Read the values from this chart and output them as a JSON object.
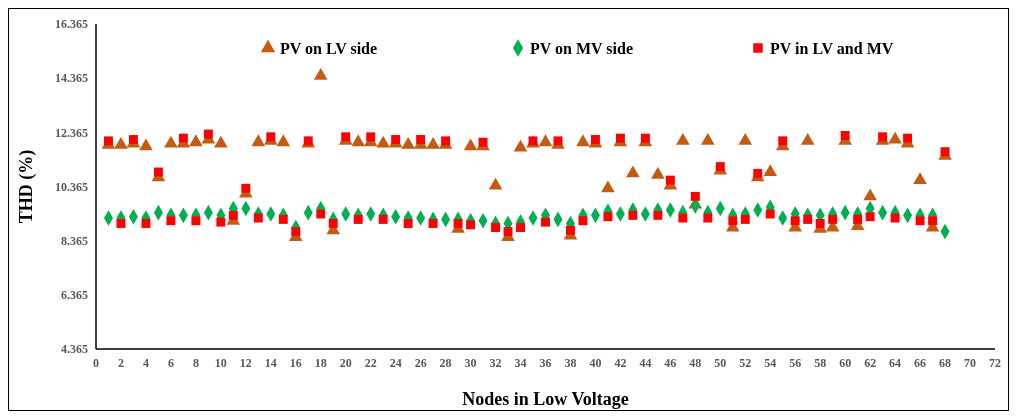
{
  "chart_data": {
    "type": "scatter",
    "xlabel": "Nodes in Low Voltage",
    "ylabel": "THD (%)",
    "x": [
      1,
      2,
      3,
      4,
      5,
      6,
      7,
      8,
      9,
      10,
      11,
      12,
      13,
      14,
      15,
      16,
      17,
      18,
      19,
      20,
      21,
      22,
      23,
      24,
      25,
      26,
      27,
      28,
      29,
      30,
      31,
      32,
      33,
      34,
      35,
      36,
      37,
      38,
      39,
      40,
      41,
      42,
      43,
      44,
      45,
      46,
      47,
      48,
      49,
      50,
      51,
      52,
      53,
      54,
      55,
      56,
      57,
      58,
      59,
      60,
      61,
      62,
      63,
      64,
      65,
      66,
      67,
      68
    ],
    "series": [
      {
        "name": "PV on LV side",
        "color": "#c55a11",
        "marker": "triangle",
        "values": [
          11.9,
          11.9,
          11.95,
          11.85,
          10.7,
          11.95,
          11.95,
          12.0,
          12.1,
          11.95,
          9.1,
          10.1,
          12.0,
          12.05,
          12.0,
          8.5,
          11.95,
          14.45,
          8.75,
          12.05,
          12.0,
          12.0,
          11.95,
          11.95,
          11.9,
          11.9,
          11.9,
          11.9,
          8.8,
          11.85,
          11.85,
          10.4,
          8.5,
          11.8,
          11.95,
          12.0,
          11.9,
          8.55,
          12.0,
          11.95,
          10.3,
          12.0,
          10.85,
          12.0,
          10.8,
          10.4,
          12.05,
          9.7,
          12.05,
          10.95,
          8.85,
          12.05,
          10.7,
          10.9,
          11.85,
          8.85,
          12.05,
          8.8,
          8.85,
          12.05,
          8.9,
          10.0,
          12.05,
          12.1,
          11.95,
          10.6,
          8.85,
          11.5
        ]
      },
      {
        "name": "PV on MV side",
        "color": "#00b050",
        "marker": "diamond",
        "values": [
          9.2,
          9.2,
          9.25,
          9.2,
          9.4,
          9.3,
          9.3,
          9.3,
          9.4,
          9.3,
          9.55,
          9.55,
          9.35,
          9.35,
          9.3,
          8.85,
          9.4,
          9.55,
          9.15,
          9.35,
          9.3,
          9.35,
          9.3,
          9.25,
          9.2,
          9.2,
          9.15,
          9.15,
          9.15,
          9.1,
          9.1,
          9.0,
          9.0,
          9.05,
          9.2,
          9.3,
          9.15,
          9.0,
          9.3,
          9.3,
          9.45,
          9.35,
          9.5,
          9.35,
          9.5,
          9.5,
          9.4,
          9.65,
          9.4,
          9.55,
          9.3,
          9.35,
          9.5,
          9.6,
          9.2,
          9.35,
          9.3,
          9.3,
          9.35,
          9.4,
          9.35,
          9.55,
          9.4,
          9.4,
          9.3,
          9.3,
          9.3,
          8.7
        ]
      },
      {
        "name": "PV in LV and MV",
        "color": "#ff0000",
        "marker": "square",
        "values": [
          12.05,
          9.0,
          12.1,
          9.0,
          10.9,
          9.1,
          12.15,
          9.1,
          12.3,
          9.05,
          9.3,
          10.3,
          9.2,
          12.2,
          9.15,
          8.7,
          12.05,
          9.35,
          9.0,
          12.2,
          9.15,
          12.2,
          9.15,
          12.1,
          9.0,
          12.1,
          9.0,
          12.05,
          9.0,
          8.95,
          12.0,
          8.85,
          8.7,
          8.85,
          12.05,
          9.05,
          12.05,
          8.75,
          9.1,
          12.1,
          9.25,
          12.15,
          9.3,
          12.15,
          9.3,
          10.6,
          9.2,
          10.0,
          9.2,
          11.1,
          9.1,
          9.15,
          10.85,
          9.35,
          12.05,
          9.1,
          9.15,
          9.0,
          9.15,
          12.25,
          9.15,
          9.25,
          12.2,
          9.2,
          12.15,
          9.1,
          9.1,
          11.65
        ]
      }
    ],
    "xlim": [
      0,
      72
    ],
    "xticks": [
      0,
      2,
      4,
      6,
      8,
      10,
      12,
      14,
      16,
      18,
      20,
      22,
      24,
      26,
      28,
      30,
      32,
      34,
      36,
      38,
      40,
      42,
      44,
      46,
      48,
      50,
      52,
      54,
      56,
      58,
      60,
      62,
      64,
      66,
      68,
      70,
      72
    ],
    "ylim": [
      4.365,
      16.365
    ],
    "yticks": [
      4.365,
      6.365,
      8.365,
      10.365,
      12.365,
      14.365,
      16.365
    ],
    "grid": false,
    "legend": "top"
  }
}
